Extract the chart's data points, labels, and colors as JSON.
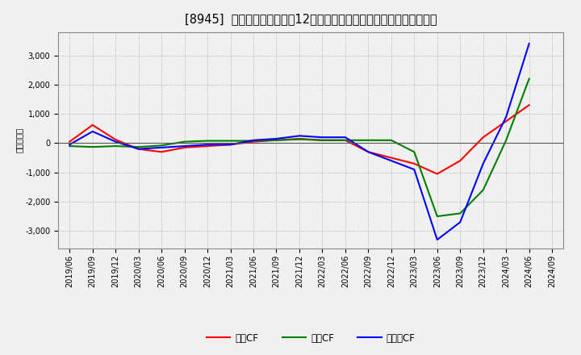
{
  "title": "[8945]  キャッシュフローの12か月移動合計の対前年同期増減額の推移",
  "ylabel": "（百万円）",
  "background_color": "#f0f0f0",
  "plot_bg_color": "#f0f0f0",
  "grid_color": "#999999",
  "x_labels": [
    "2019/06",
    "2019/09",
    "2019/12",
    "2020/03",
    "2020/06",
    "2020/09",
    "2020/12",
    "2021/03",
    "2021/06",
    "2021/09",
    "2021/12",
    "2022/03",
    "2022/06",
    "2022/09",
    "2022/12",
    "2023/03",
    "2023/06",
    "2023/09",
    "2023/12",
    "2024/03",
    "2024/06",
    "2024/09"
  ],
  "営業CF": [
    50,
    620,
    120,
    -200,
    -300,
    -150,
    -100,
    -50,
    50,
    100,
    150,
    100,
    100,
    -300,
    -500,
    -700,
    -1050,
    -600,
    200,
    750,
    1300,
    null
  ],
  "投資CF": [
    -100,
    -130,
    -100,
    -130,
    -80,
    50,
    80,
    80,
    80,
    100,
    130,
    100,
    100,
    100,
    100,
    -300,
    -2500,
    -2400,
    -1600,
    100,
    2200,
    null
  ],
  "フリーCF": [
    -50,
    400,
    50,
    -200,
    -150,
    -100,
    -50,
    -50,
    100,
    150,
    250,
    200,
    200,
    -300,
    -600,
    -900,
    -3300,
    -2700,
    -700,
    900,
    3400,
    null
  ],
  "line_colors": {
    "営業CF": "#ff0000",
    "投資CF": "#008000",
    "フリーCF": "#0000ff"
  },
  "ylim": [
    -3600,
    3800
  ],
  "yticks": [
    -3000,
    -2000,
    -1000,
    0,
    1000,
    2000,
    3000
  ],
  "title_fontsize": 10.5,
  "label_fontsize": 7.5,
  "tick_fontsize": 7,
  "legend_fontsize": 8.5
}
